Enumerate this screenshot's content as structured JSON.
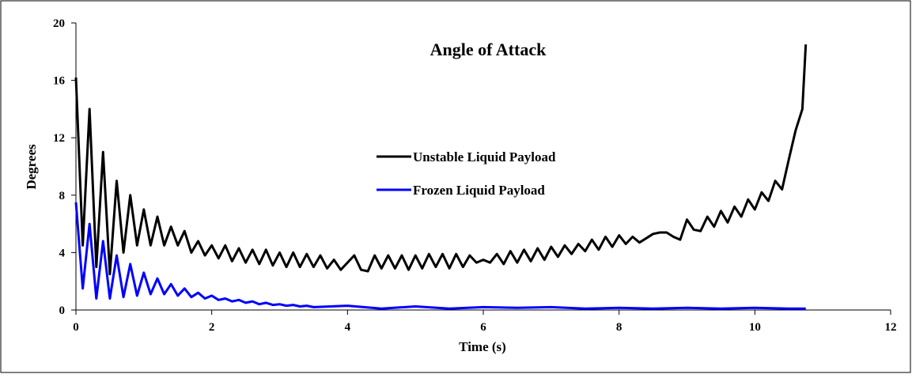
{
  "chart_data": {
    "type": "line",
    "title": "Angle of Attack",
    "xlabel": "Time (s)",
    "ylabel": "Degrees",
    "xlim": [
      0,
      12
    ],
    "xticks": [
      0,
      2,
      4,
      6,
      8,
      10,
      12
    ],
    "ylim": [
      0,
      20
    ],
    "yticks": [
      0,
      4,
      8,
      12,
      16,
      20
    ],
    "series": [
      {
        "name": "Unstable Liquid Payload",
        "color": "#000000",
        "x": [
          0,
          0.1,
          0.2,
          0.3,
          0.4,
          0.5,
          0.6,
          0.7,
          0.8,
          0.9,
          1.0,
          1.1,
          1.2,
          1.3,
          1.4,
          1.5,
          1.6,
          1.7,
          1.8,
          1.9,
          2.0,
          2.1,
          2.2,
          2.3,
          2.4,
          2.5,
          2.6,
          2.7,
          2.8,
          2.9,
          3.0,
          3.1,
          3.2,
          3.3,
          3.4,
          3.5,
          3.6,
          3.7,
          3.8,
          3.9,
          4.0,
          4.1,
          4.2,
          4.3,
          4.4,
          4.5,
          4.6,
          4.7,
          4.8,
          4.9,
          5.0,
          5.1,
          5.2,
          5.3,
          5.4,
          5.5,
          5.6,
          5.7,
          5.8,
          5.9,
          6.0,
          6.1,
          6.2,
          6.3,
          6.4,
          6.5,
          6.6,
          6.7,
          6.8,
          6.9,
          7.0,
          7.1,
          7.2,
          7.3,
          7.4,
          7.5,
          7.6,
          7.7,
          7.8,
          7.9,
          8.0,
          8.1,
          8.2,
          8.3,
          8.4,
          8.5,
          8.6,
          8.7,
          8.8,
          8.9,
          9.0,
          9.1,
          9.2,
          9.3,
          9.4,
          9.5,
          9.6,
          9.7,
          9.8,
          9.9,
          10.0,
          10.1,
          10.2,
          10.3,
          10.4,
          10.5,
          10.6,
          10.7,
          10.75
        ],
        "values": [
          16.2,
          4.5,
          14,
          3,
          11,
          2.5,
          9,
          4,
          8,
          4.5,
          7,
          4.5,
          6.5,
          4.5,
          5.8,
          4.5,
          5.5,
          4,
          4.8,
          3.8,
          4.5,
          3.6,
          4.5,
          3.4,
          4.3,
          3.3,
          4.2,
          3.2,
          4.2,
          3.1,
          4.0,
          3.0,
          4.0,
          3.0,
          3.9,
          3.0,
          3.8,
          2.9,
          3.5,
          2.8,
          3.3,
          3.8,
          2.8,
          2.7,
          3.8,
          2.9,
          3.8,
          2.9,
          3.8,
          2.8,
          3.8,
          2.9,
          3.9,
          3.0,
          3.9,
          2.9,
          3.9,
          3.0,
          3.8,
          3.3,
          3.5,
          3.3,
          3.9,
          3.2,
          4.1,
          3.3,
          4.2,
          3.4,
          4.3,
          3.5,
          4.4,
          3.7,
          4.5,
          3.9,
          4.6,
          4.1,
          4.9,
          4.2,
          5.1,
          4.4,
          5.2,
          4.6,
          5.1,
          4.7,
          5.0,
          5.3,
          5.4,
          5.4,
          5.1,
          4.9,
          6.3,
          5.6,
          5.5,
          6.5,
          5.8,
          6.9,
          6.1,
          7.2,
          6.5,
          7.7,
          7.0,
          8.2,
          7.6,
          9.0,
          8.4,
          10.5,
          12.5,
          14,
          18.5
        ]
      },
      {
        "name": "Frozen Liquid Payload",
        "color": "#0000ff",
        "x": [
          0,
          0.1,
          0.2,
          0.3,
          0.4,
          0.5,
          0.6,
          0.7,
          0.8,
          0.9,
          1.0,
          1.1,
          1.2,
          1.3,
          1.4,
          1.5,
          1.6,
          1.7,
          1.8,
          1.9,
          2.0,
          2.1,
          2.2,
          2.3,
          2.4,
          2.5,
          2.6,
          2.7,
          2.8,
          2.9,
          3.0,
          3.1,
          3.2,
          3.3,
          3.4,
          3.5,
          4.0,
          4.5,
          5.0,
          5.5,
          6.0,
          6.5,
          7.0,
          7.5,
          8.0,
          8.5,
          9.0,
          9.5,
          10.0,
          10.5,
          10.75
        ],
        "values": [
          7.5,
          1.5,
          6,
          0.8,
          4.8,
          0.8,
          3.8,
          0.9,
          3.2,
          1,
          2.6,
          1.1,
          2.2,
          1.1,
          1.8,
          1.0,
          1.5,
          0.9,
          1.2,
          0.8,
          1.0,
          0.7,
          0.8,
          0.6,
          0.7,
          0.5,
          0.6,
          0.4,
          0.5,
          0.35,
          0.4,
          0.3,
          0.35,
          0.25,
          0.3,
          0.2,
          0.3,
          0.1,
          0.25,
          0.1,
          0.2,
          0.15,
          0.2,
          0.1,
          0.15,
          0.1,
          0.15,
          0.1,
          0.15,
          0.1,
          0.1
        ]
      }
    ]
  }
}
